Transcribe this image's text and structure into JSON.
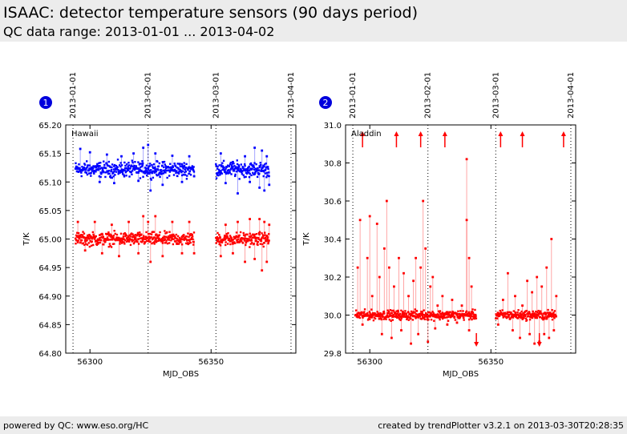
{
  "header": {
    "title": "ISAAC: detector temperature sensors (90 days period)",
    "subtitle": "QC data range: 2013-01-01 ... 2013-04-02"
  },
  "footer": {
    "left": "powered by QC: www.eso.org/HC",
    "right": "created by trendPlotter v3.2.1 on 2013-03-30T20:28:35"
  },
  "chart_data": [
    {
      "type": "scatter",
      "panel_number": "1",
      "inner_label": "Hawaii",
      "xlabel": "MJD_OBS",
      "ylabel": "T/K",
      "xlim": [
        56290,
        56385
      ],
      "ylim": [
        64.8,
        65.2
      ],
      "xticks": [
        56300,
        56350
      ],
      "yticks": [
        64.8,
        64.85,
        64.9,
        64.95,
        65.0,
        65.05,
        65.1,
        65.15,
        65.2
      ],
      "ytick_labels": [
        "64.80",
        "64.85",
        "64.90",
        "64.95",
        "65.00",
        "65.05",
        "65.10",
        "65.15",
        "65.20"
      ],
      "date_markers": [
        {
          "x": 56293,
          "label": "2013-01-01"
        },
        {
          "x": 56324,
          "label": "2013-02-01"
        },
        {
          "x": 56352,
          "label": "2013-03-01"
        },
        {
          "x": 56383,
          "label": "2013-04-01"
        }
      ],
      "series": [
        {
          "color": "#0000ff",
          "segments": [
            [
              56294,
              56343
            ],
            [
              56352,
              56374
            ]
          ],
          "center": 65.122,
          "spread": 0.008,
          "outliers": [
            [
              56296,
              65.158
            ],
            [
              56300,
              65.152
            ],
            [
              56304,
              65.1
            ],
            [
              56307,
              65.148
            ],
            [
              56310,
              65.098
            ],
            [
              56313,
              65.145
            ],
            [
              56318,
              65.15
            ],
            [
              56320,
              65.102
            ],
            [
              56322,
              65.16
            ],
            [
              56324,
              65.165
            ],
            [
              56325,
              65.085
            ],
            [
              56327,
              65.15
            ],
            [
              56330,
              65.095
            ],
            [
              56334,
              65.146
            ],
            [
              56338,
              65.1
            ],
            [
              56341,
              65.145
            ],
            [
              56343,
              65.11
            ],
            [
              56354,
              65.15
            ],
            [
              56356,
              65.098
            ],
            [
              56359,
              65.135
            ],
            [
              56361,
              65.08
            ],
            [
              56364,
              65.145
            ],
            [
              56366,
              65.1
            ],
            [
              56368,
              65.16
            ],
            [
              56370,
              65.09
            ],
            [
              56371,
              65.155
            ],
            [
              56372,
              65.085
            ],
            [
              56373,
              65.145
            ],
            [
              56374,
              65.095
            ]
          ]
        },
        {
          "color": "#ff0000",
          "segments": [
            [
              56294,
              56343
            ],
            [
              56352,
              56374
            ]
          ],
          "center": 65.0,
          "spread": 0.007,
          "outliers": [
            [
              56295,
              65.03
            ],
            [
              56298,
              64.98
            ],
            [
              56302,
              65.03
            ],
            [
              56305,
              64.975
            ],
            [
              56309,
              65.025
            ],
            [
              56312,
              64.97
            ],
            [
              56316,
              65.03
            ],
            [
              56320,
              64.975
            ],
            [
              56322,
              65.04
            ],
            [
              56324,
              65.03
            ],
            [
              56325,
              64.96
            ],
            [
              56327,
              65.04
            ],
            [
              56330,
              64.97
            ],
            [
              56334,
              65.03
            ],
            [
              56338,
              64.975
            ],
            [
              56341,
              65.03
            ],
            [
              56343,
              64.975
            ],
            [
              56354,
              64.97
            ],
            [
              56356,
              65.025
            ],
            [
              56359,
              64.975
            ],
            [
              56361,
              65.03
            ],
            [
              56364,
              64.96
            ],
            [
              56366,
              65.035
            ],
            [
              56368,
              64.965
            ],
            [
              56370,
              65.035
            ],
            [
              56371,
              64.945
            ],
            [
              56372,
              65.03
            ],
            [
              56373,
              64.96
            ],
            [
              56374,
              65.025
            ]
          ]
        }
      ]
    },
    {
      "type": "scatter",
      "panel_number": "2",
      "inner_label": "Aladdin",
      "xlabel": "MJD_OBS",
      "ylabel": "T/K",
      "xlim": [
        56290,
        56385
      ],
      "ylim": [
        29.8,
        31.0
      ],
      "xticks": [
        56300,
        56350
      ],
      "yticks": [
        29.8,
        30.0,
        30.2,
        30.4,
        30.6,
        30.8,
        31.0
      ],
      "ytick_labels": [
        "29.8",
        "30.0",
        "30.2",
        "30.4",
        "30.6",
        "30.8",
        "31.0"
      ],
      "date_markers": [
        {
          "x": 56293,
          "label": "2013-01-01"
        },
        {
          "x": 56324,
          "label": "2013-02-01"
        },
        {
          "x": 56352,
          "label": "2013-03-01"
        },
        {
          "x": 56383,
          "label": "2013-04-01"
        }
      ],
      "arrows_up": [
        56297,
        56311,
        56321,
        56331,
        56354,
        56363,
        56380
      ],
      "arrows_down": [
        56344,
        56370
      ],
      "series": [
        {
          "color": "#ff0000",
          "segments": [
            [
              56294,
              56344
            ],
            [
              56352,
              56377
            ]
          ],
          "center": 30.0,
          "spread": 0.015,
          "outliers": [
            [
              56295,
              30.25
            ],
            [
              56296,
              30.5
            ],
            [
              56297,
              29.95
            ],
            [
              56299,
              30.3
            ],
            [
              56300,
              30.52
            ],
            [
              56301,
              30.1
            ],
            [
              56303,
              30.48
            ],
            [
              56304,
              30.2
            ],
            [
              56305,
              29.9
            ],
            [
              56306,
              30.35
            ],
            [
              56307,
              30.6
            ],
            [
              56308,
              30.25
            ],
            [
              56309,
              29.88
            ],
            [
              56310,
              30.15
            ],
            [
              56312,
              30.3
            ],
            [
              56313,
              29.92
            ],
            [
              56314,
              30.22
            ],
            [
              56316,
              30.1
            ],
            [
              56317,
              29.85
            ],
            [
              56318,
              30.18
            ],
            [
              56319,
              30.3
            ],
            [
              56320,
              29.9
            ],
            [
              56321,
              30.25
            ],
            [
              56322,
              30.6
            ],
            [
              56323,
              30.35
            ],
            [
              56324,
              29.86
            ],
            [
              56325,
              30.15
            ],
            [
              56326,
              30.2
            ],
            [
              56327,
              29.93
            ],
            [
              56328,
              30.05
            ],
            [
              56330,
              30.1
            ],
            [
              56332,
              29.95
            ],
            [
              56334,
              30.08
            ],
            [
              56336,
              29.96
            ],
            [
              56338,
              30.05
            ],
            [
              56340,
              30.82
            ],
            [
              56340,
              30.5
            ],
            [
              56341,
              30.3
            ],
            [
              56341,
              29.92
            ],
            [
              56342,
              30.15
            ],
            [
              56353,
              29.95
            ],
            [
              56355,
              30.08
            ],
            [
              56357,
              30.22
            ],
            [
              56359,
              29.92
            ],
            [
              56360,
              30.1
            ],
            [
              56362,
              29.88
            ],
            [
              56363,
              30.05
            ],
            [
              56365,
              30.18
            ],
            [
              56366,
              29.9
            ],
            [
              56367,
              30.12
            ],
            [
              56368,
              29.85
            ],
            [
              56369,
              30.2
            ],
            [
              56370,
              29.86
            ],
            [
              56371,
              30.15
            ],
            [
              56372,
              29.9
            ],
            [
              56373,
              30.25
            ],
            [
              56374,
              29.88
            ],
            [
              56375,
              30.4
            ],
            [
              56376,
              29.92
            ],
            [
              56377,
              30.1
            ]
          ]
        }
      ]
    }
  ]
}
